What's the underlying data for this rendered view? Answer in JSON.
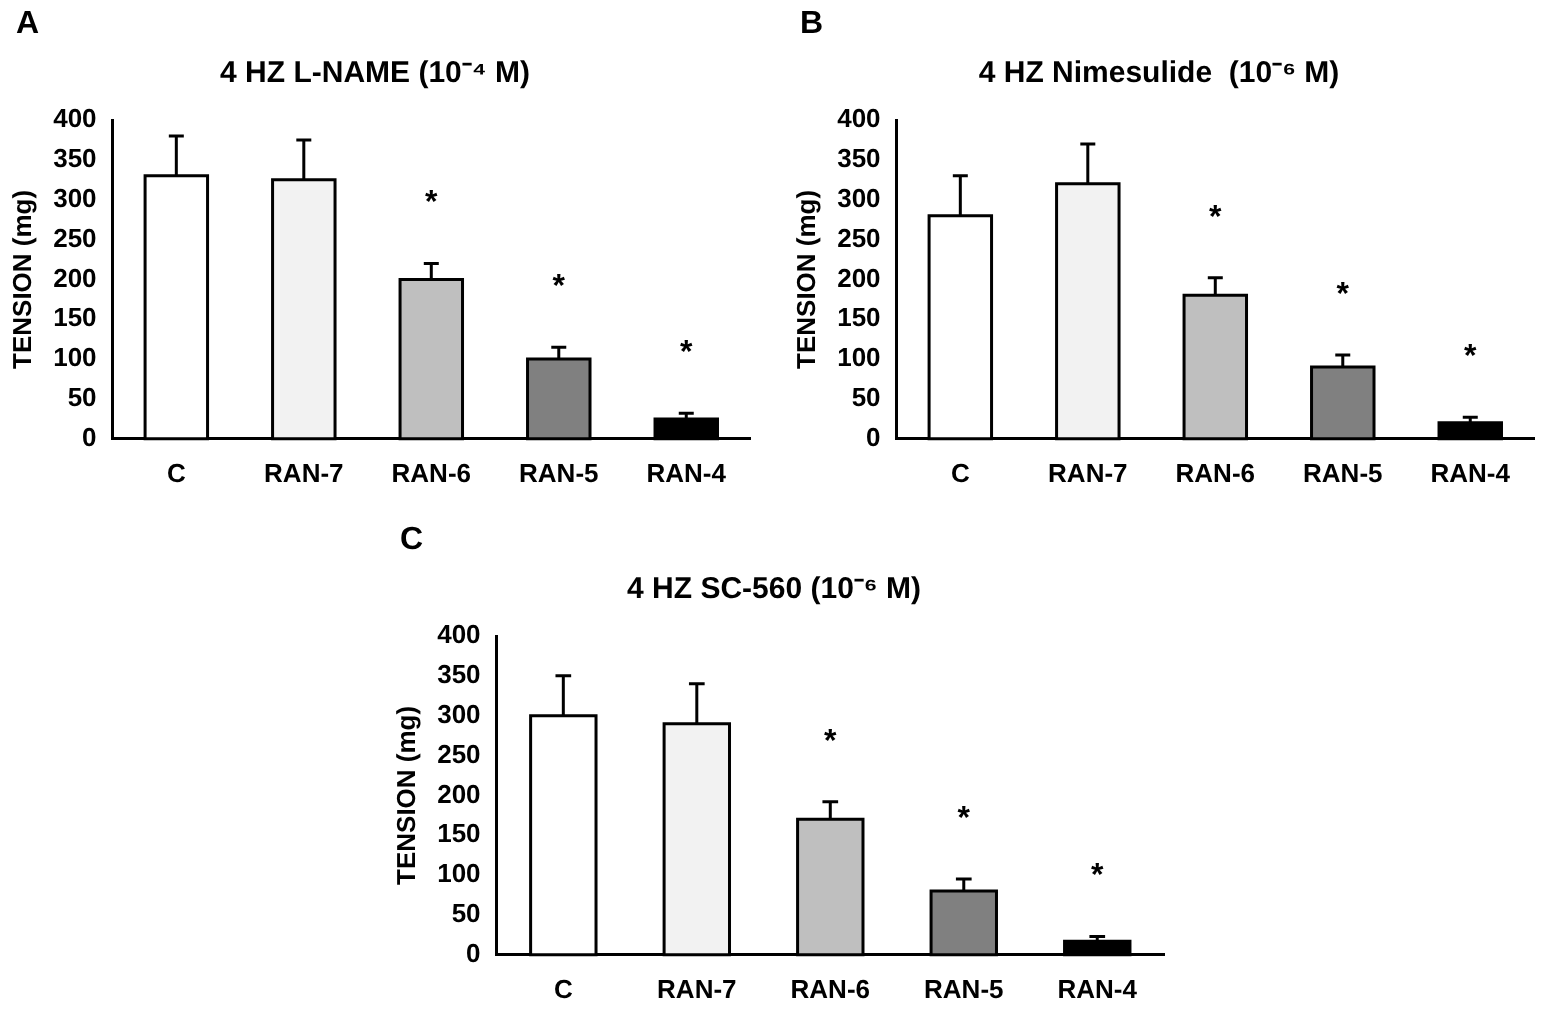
{
  "chart_data": [
    {
      "type": "bar",
      "title": "4 HZ L-NAME (10⁻⁴ M)",
      "ylabel": "TENSION (mg)",
      "categories": [
        "C",
        "RAN-7",
        "RAN-6",
        "RAN-5",
        "RAN-4"
      ],
      "values": [
        330,
        325,
        200,
        100,
        25
      ],
      "colors": [
        "#ffffff",
        "#f2f2f2",
        "#bfbfbf",
        "#808080",
        "#000000"
      ],
      "errors": [
        [
          330,
          380
        ],
        [
          325,
          375
        ],
        [
          200,
          220
        ],
        [
          100,
          115
        ],
        [
          25,
          32
        ]
      ],
      "ylim": [
        0,
        400
      ],
      "yticks": [
        0,
        50,
        100,
        150,
        200,
        250,
        300,
        350,
        400
      ],
      "annotations": [
        "A",
        {
          "text": "*",
          "x": "RAN-6",
          "y": 220
        },
        {
          "text": "*",
          "x": "RAN-5",
          "y": 115
        },
        {
          "text": "*",
          "x": "RAN-4",
          "y": 32
        }
      ]
    },
    {
      "type": "bar",
      "title": "4 HZ Nimesulide  (10⁻⁶ M)",
      "ylabel": "TENSION (mg)",
      "categories": [
        "C",
        "RAN-7",
        "RAN-6",
        "RAN-5",
        "RAN-4"
      ],
      "values": [
        280,
        320,
        180,
        90,
        20
      ],
      "colors": [
        "#ffffff",
        "#f2f2f2",
        "#bfbfbf",
        "#808080",
        "#000000"
      ],
      "errors": [
        [
          280,
          330
        ],
        [
          320,
          370
        ],
        [
          180,
          202
        ],
        [
          90,
          105
        ],
        [
          20,
          27
        ]
      ],
      "ylim": [
        0,
        400
      ],
      "yticks": [
        0,
        50,
        100,
        150,
        200,
        250,
        300,
        350,
        400
      ],
      "annotations": [
        "B",
        {
          "text": "*",
          "x": "RAN-6",
          "y": 202
        },
        {
          "text": "*",
          "x": "RAN-5",
          "y": 105
        },
        {
          "text": "*",
          "x": "RAN-4",
          "y": 27
        }
      ]
    },
    {
      "type": "bar",
      "title": "4 HZ SC-560 (10⁻⁶ M)",
      "ylabel": "TENSION (mg)",
      "categories": [
        "C",
        "RAN-7",
        "RAN-6",
        "RAN-5",
        "RAN-4"
      ],
      "values": [
        300,
        290,
        170,
        80,
        17
      ],
      "colors": [
        "#ffffff",
        "#f2f2f2",
        "#bfbfbf",
        "#808080",
        "#000000"
      ],
      "errors": [
        [
          300,
          350
        ],
        [
          290,
          340
        ],
        [
          170,
          192
        ],
        [
          80,
          95
        ],
        [
          17,
          23
        ]
      ],
      "ylim": [
        0,
        400
      ],
      "yticks": [
        0,
        50,
        100,
        150,
        200,
        250,
        300,
        350,
        400
      ],
      "annotations": [
        "C",
        {
          "text": "*",
          "x": "RAN-6",
          "y": 192
        },
        {
          "text": "*",
          "x": "RAN-5",
          "y": 95
        },
        {
          "text": "*",
          "x": "RAN-4",
          "y": 23
        }
      ]
    }
  ]
}
